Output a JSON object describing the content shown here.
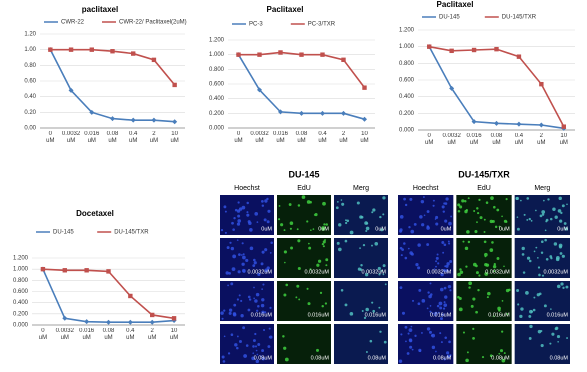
{
  "chart_data": [
    {
      "type": "line",
      "title": "paclitaxel",
      "categories": [
        "0 uM",
        "0.0032 uM",
        "0.016 uM",
        "0.08 uM",
        "0.4 uM",
        "2 uM",
        "10 uM"
      ],
      "series": [
        {
          "name": "CWR-22",
          "color": "#4a7ebb",
          "values": [
            1.0,
            0.48,
            0.2,
            0.12,
            0.1,
            0.1,
            0.08
          ]
        },
        {
          "name": "CWR-22/ Paclitaxel(2uM)",
          "color": "#c0504d",
          "values": [
            1.0,
            1.0,
            1.0,
            0.98,
            0.95,
            0.87,
            0.55
          ]
        }
      ],
      "ylim": [
        0,
        1.2
      ],
      "yticks": [
        {
          "value": 0,
          "label": "0.00"
        },
        {
          "value": 0.2,
          "label": "0.20"
        },
        {
          "value": 0.4,
          "label": "0.40"
        },
        {
          "value": 0.6,
          "label": "0.60"
        },
        {
          "value": 0.8,
          "label": "0.80"
        },
        {
          "value": 1.0,
          "label": "1.00"
        },
        {
          "value": 1.2,
          "label": "1.20"
        }
      ],
      "grid": true
    },
    {
      "type": "line",
      "title": "Paclitaxel",
      "categories": [
        "0 uM",
        "0.0032 uM",
        "0.016 uM",
        "0.08 uM",
        "0.4 uM",
        "2 uM",
        "10 uM"
      ],
      "series": [
        {
          "name": "PC-3",
          "color": "#4a7ebb",
          "values": [
            1.0,
            0.52,
            0.22,
            0.2,
            0.2,
            0.2,
            0.12
          ]
        },
        {
          "name": "PC-3/TXR",
          "color": "#c0504d",
          "values": [
            1.0,
            1.0,
            1.03,
            1.0,
            1.0,
            0.93,
            0.55
          ]
        }
      ],
      "ylim": [
        0,
        1.2
      ],
      "yticks": [
        {
          "value": 0,
          "label": "0.000"
        },
        {
          "value": 0.2,
          "label": "0.200"
        },
        {
          "value": 0.4,
          "label": "0.400"
        },
        {
          "value": 0.6,
          "label": "0.600"
        },
        {
          "value": 0.8,
          "label": "0.800"
        },
        {
          "value": 1.0,
          "label": "1.000"
        },
        {
          "value": 1.2,
          "label": "1.200"
        }
      ],
      "grid": true
    },
    {
      "type": "line",
      "title": "Paclitaxel",
      "categories": [
        "0 uM",
        "0.0032 uM",
        "0.016 uM",
        "0.08 uM",
        "0.4 uM",
        "2 uM",
        "10 uM"
      ],
      "series": [
        {
          "name": "DU-145",
          "color": "#4a7ebb",
          "values": [
            1.0,
            0.5,
            0.1,
            0.08,
            0.07,
            0.06,
            0.02
          ]
        },
        {
          "name": "DU-145/TXR",
          "color": "#c0504d",
          "values": [
            1.0,
            0.95,
            0.96,
            0.97,
            0.88,
            0.55,
            0.04
          ]
        }
      ],
      "ylim": [
        0,
        1.2
      ],
      "yticks": [
        {
          "value": 0,
          "label": "0.000"
        },
        {
          "value": 0.2,
          "label": "0.200"
        },
        {
          "value": 0.4,
          "label": "0.400"
        },
        {
          "value": 0.6,
          "label": "0.600"
        },
        {
          "value": 0.8,
          "label": "0.800"
        },
        {
          "value": 1.0,
          "label": "1.000"
        },
        {
          "value": 1.2,
          "label": "1.200"
        }
      ],
      "grid": true
    },
    {
      "type": "line",
      "title": "Docetaxel",
      "categories": [
        "0 uM",
        "0.0032 uM",
        "0.016 uM",
        "0.08 uM",
        "0.4 uM",
        "2 uM",
        "10 uM"
      ],
      "series": [
        {
          "name": "DU-145",
          "color": "#4a7ebb",
          "values": [
            1.0,
            0.12,
            0.06,
            0.05,
            0.05,
            0.05,
            0.08
          ]
        },
        {
          "name": "DU-145/TXR",
          "color": "#c0504d",
          "values": [
            1.0,
            0.98,
            0.98,
            0.96,
            0.52,
            0.18,
            0.12
          ]
        }
      ],
      "ylim": [
        0,
        1.2
      ],
      "yticks": [
        {
          "value": 0,
          "label": "0.000"
        },
        {
          "value": 0.2,
          "label": "0.200"
        },
        {
          "value": 0.4,
          "label": "0.400"
        },
        {
          "value": 0.6,
          "label": "0.600"
        },
        {
          "value": 0.8,
          "label": "0.800"
        },
        {
          "value": 1.0,
          "label": "1.000"
        },
        {
          "value": 1.2,
          "label": "1.200"
        }
      ],
      "grid": true
    }
  ],
  "image_panels": [
    {
      "title": "DU-145",
      "columns": [
        "Hoechst",
        "EdU",
        "Merg"
      ],
      "rows": [
        "0uM",
        "0.0032uM",
        "0.016uM",
        "0.08uM"
      ]
    },
    {
      "title": "DU-145/TXR",
      "columns": [
        "Hoechst",
        "EdU",
        "Merg"
      ],
      "rows": [
        "0uM",
        "0.0032uM",
        "0.016uM",
        "0.08uM"
      ]
    }
  ]
}
